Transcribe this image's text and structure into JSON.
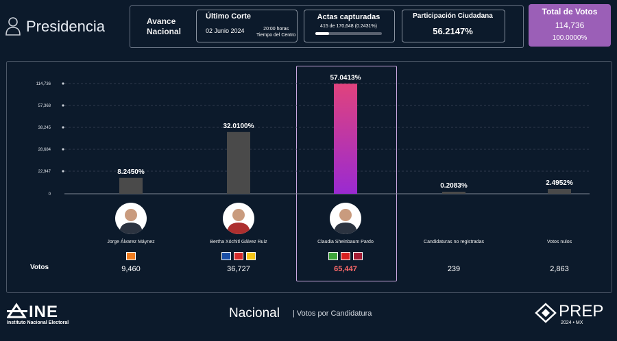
{
  "header": {
    "title": "Presidencia",
    "avance": [
      "Avance",
      "Nacional"
    ],
    "ultimo_corte": {
      "title": "Último Corte",
      "date": "02 Junio 2024",
      "time_1": "20:00 horas",
      "time_2": "Tiempo del Centro"
    },
    "actas": {
      "title": "Actas capturadas",
      "detail": "415 de 170,648 (0.2431%)",
      "progress": 0.2431
    },
    "participacion": {
      "title": "Participación Ciudadana",
      "value": "56.2147%"
    },
    "total": {
      "title": "Total de Votos",
      "value": "114,736",
      "pct": "100.0000%"
    }
  },
  "chart_data": {
    "type": "bar",
    "y_ticks": [
      "114,736",
      "57,368",
      "38,245",
      "28,684",
      "22,947",
      "0"
    ],
    "categories": [
      "Jorge Álvarez Máynez",
      "Bertha Xóchitl Gálvez Ruiz",
      "Claudia Sheinbaum Pardo",
      "Candidaturas no registradas",
      "Votos nulos"
    ],
    "values": [
      9460,
      36727,
      65447,
      239,
      2863
    ],
    "vote_labels": [
      "9,460",
      "36,727",
      "65,447",
      "239",
      "2,863"
    ],
    "percent_labels": [
      "8.2450%",
      "32.0100%",
      "57.0413%",
      "0.2083%",
      "2.4952%"
    ],
    "highlighted_index": 2,
    "colors": {
      "default": "#4a4a4a",
      "highlight_top": "#e0437d",
      "highlight_bottom": "#9a2ad1",
      "highlight_text": "#ff6b6b"
    }
  },
  "candidates": [
    {
      "name": "Jorge Álvarez Máynez",
      "votes": "9,460",
      "parties": [
        {
          "name": "MC",
          "color": "#f07c1e"
        }
      ]
    },
    {
      "name": "Bertha Xóchitl Gálvez Ruiz",
      "votes": "36,727",
      "parties": [
        {
          "name": "PAN",
          "color": "#1a4ea6"
        },
        {
          "name": "PRI",
          "color": "#d42a2a"
        },
        {
          "name": "PRD",
          "color": "#f5c518"
        }
      ]
    },
    {
      "name": "Claudia Sheinbaum Pardo",
      "votes": "65,447",
      "parties": [
        {
          "name": "PVEM",
          "color": "#3da43a"
        },
        {
          "name": "PT",
          "color": "#d72020"
        },
        {
          "name": "MORENA",
          "color": "#a41c34"
        }
      ]
    },
    {
      "name": "Candidaturas no registradas",
      "votes": "239",
      "parties": []
    },
    {
      "name": "Votos nulos",
      "votes": "2,863",
      "parties": []
    }
  ],
  "votes_label": "Votos",
  "footer": {
    "ine": "INE",
    "ine_sub": "Instituto Nacional Electoral",
    "scope": "Nacional",
    "subtitle": "| Votos por Candidatura",
    "prep": "PREP",
    "prep_sub": "2024 • MX"
  }
}
